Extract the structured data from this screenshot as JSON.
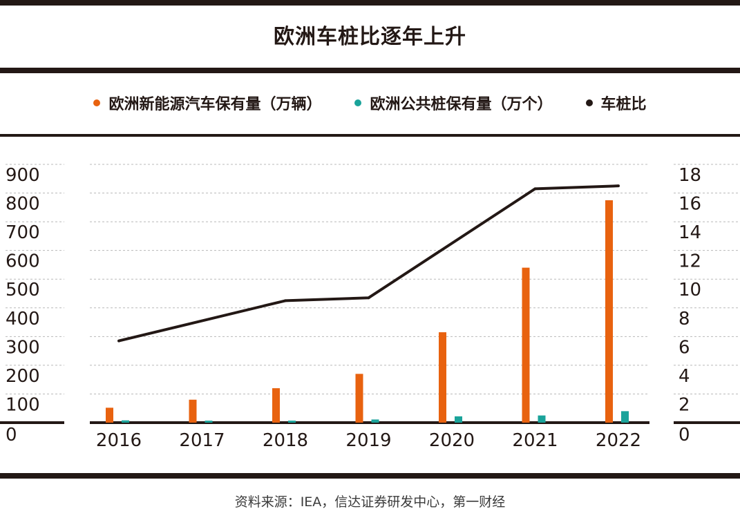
{
  "title": "欧洲车桩比逐年上升",
  "source": "资料来源：IEA，信达证券研发中心，第一财经",
  "colors": {
    "ev": "#e8620f",
    "charger": "#1aa39a",
    "ratio": "#231815"
  },
  "chart_data": {
    "type": "bar",
    "categories": [
      "2016",
      "2017",
      "2018",
      "2019",
      "2020",
      "2021",
      "2022"
    ],
    "series": [
      {
        "name": "欧洲新能源汽车保有量（万辆）",
        "kind": "bar",
        "axis": "left",
        "values": [
          52,
          80,
          120,
          170,
          315,
          540,
          775
        ]
      },
      {
        "name": "欧洲公共桩保有量（万个）",
        "kind": "bar",
        "axis": "left",
        "values": [
          8,
          7,
          7,
          11,
          22,
          25,
          40
        ]
      },
      {
        "name": "车桩比",
        "kind": "line",
        "axis": "right",
        "values": [
          5.7,
          null,
          8.5,
          8.7,
          null,
          16.3,
          16.5
        ]
      }
    ],
    "y_left": {
      "min": 0,
      "max": 900,
      "ticks": [
        "0",
        "100",
        "200",
        "300",
        "400",
        "500",
        "600",
        "700",
        "800",
        "900"
      ]
    },
    "y_right": {
      "min": 0,
      "max": 18,
      "ticks": [
        "0",
        "2",
        "4",
        "6",
        "8",
        "10",
        "12",
        "14",
        "16",
        "18"
      ]
    },
    "grid": true,
    "legend_position": "top"
  }
}
